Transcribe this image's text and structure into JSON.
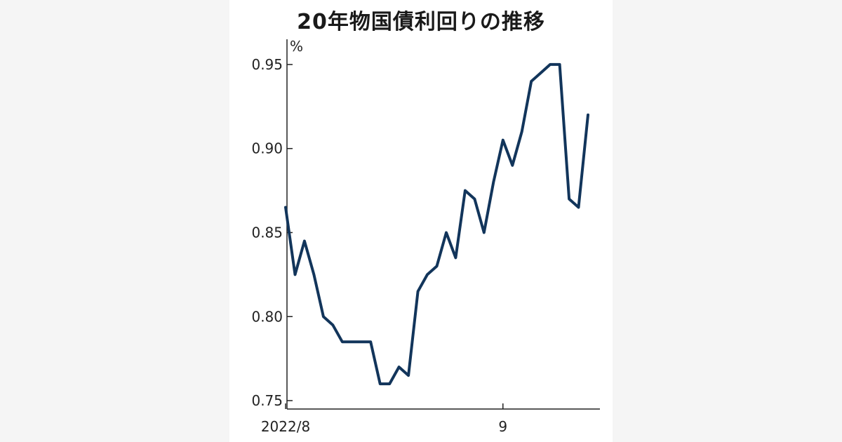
{
  "chart_data": {
    "type": "line",
    "title": "20年物国債利回りの推移",
    "ylabel": "%",
    "ylim": [
      0.745,
      0.965
    ],
    "y_ticks": [
      "0.75",
      "0.80",
      "0.85",
      "0.90",
      "0.95"
    ],
    "x_tick_labels": [
      "2022/8",
      "9"
    ],
    "grid": false,
    "legend": "none",
    "series": [
      {
        "color": "#12355b",
        "values": [
          0.865,
          0.825,
          0.845,
          0.825,
          0.8,
          0.795,
          0.785,
          0.785,
          0.785,
          0.785,
          0.76,
          0.76,
          0.77,
          0.765,
          0.815,
          0.825,
          0.83,
          0.85,
          0.835,
          0.875,
          0.87,
          0.85,
          0.88,
          0.905,
          0.89,
          0.91,
          0.94,
          0.945,
          0.95,
          0.95,
          0.87,
          0.865,
          0.92
        ]
      }
    ]
  }
}
